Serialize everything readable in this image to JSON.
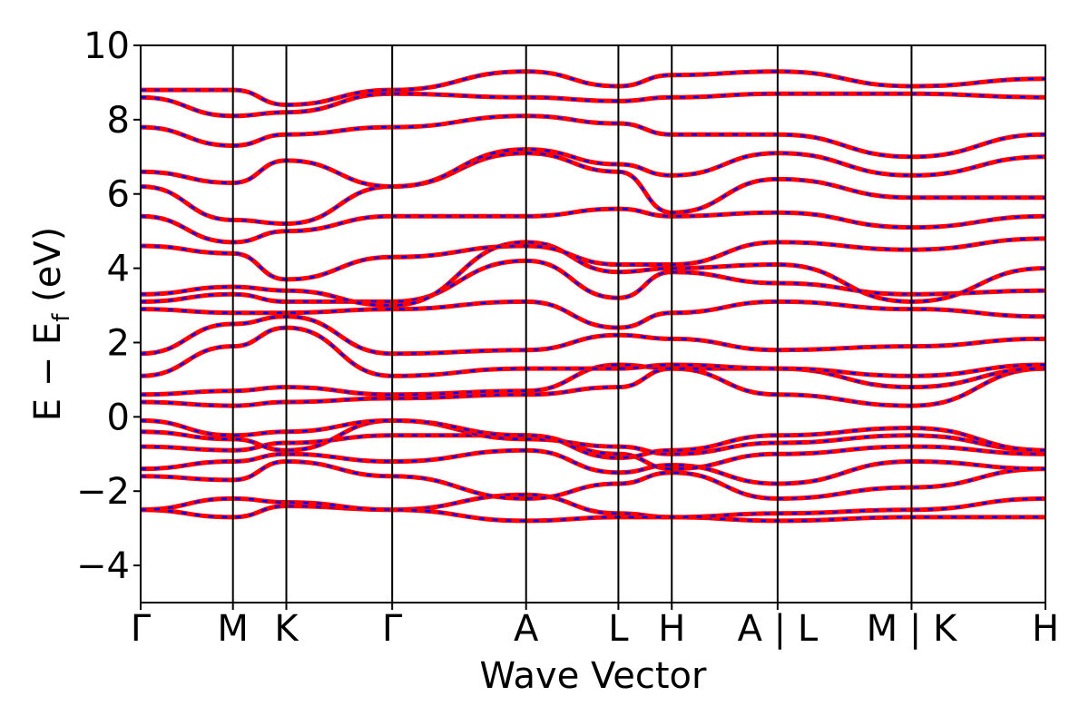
{
  "chart_data": {
    "type": "line",
    "title": "",
    "xlabel": "Wave Vector",
    "ylabel": "E − E",
    "ylabel_sub": "f",
    "ylabel_unit": " (eV)",
    "ylim": [
      -5,
      10
    ],
    "yticks": [
      -4,
      -2,
      0,
      2,
      4,
      6,
      8,
      10
    ],
    "ytick_labels": [
      "−4",
      "−2",
      "0",
      "2",
      "4",
      "6",
      "8",
      "10"
    ],
    "xlim": [
      0,
      1
    ],
    "kpoints": [
      {
        "label": "Γ",
        "x": 0.0
      },
      {
        "label": "M",
        "x": 0.102
      },
      {
        "label": "K",
        "x": 0.161
      },
      {
        "label": "Γ",
        "x": 0.278
      },
      {
        "label": "A",
        "x": 0.426
      },
      {
        "label": "L",
        "x": 0.528
      },
      {
        "label": "H",
        "x": 0.587
      },
      {
        "label": "A | L",
        "x": 0.704
      },
      {
        "label": "M | K",
        "x": 0.852
      },
      {
        "label": "H",
        "x": 1.0
      }
    ],
    "grid": false,
    "series_styles": [
      {
        "color": "#ff0000",
        "style": "solid",
        "width": 5
      },
      {
        "color": "#0000ff",
        "style": "dashed",
        "width": 2.5
      }
    ],
    "bands": [
      {
        "x": [
          0,
          0.102,
          0.161,
          0.278,
          0.426,
          0.528,
          0.587,
          0.704,
          0.852,
          1.0
        ],
        "y": [
          -2.5,
          -2.7,
          -2.4,
          -2.5,
          -2.1,
          -2.6,
          -2.7,
          -2.8,
          -2.7,
          -2.7
        ]
      },
      {
        "x": [
          0,
          0.102,
          0.161,
          0.278,
          0.426,
          0.528,
          0.587,
          0.704,
          0.852,
          1.0
        ],
        "y": [
          -2.5,
          -2.2,
          -2.3,
          -2.5,
          -2.8,
          -2.7,
          -2.7,
          -2.6,
          -2.5,
          -2.2
        ]
      },
      {
        "x": [
          0,
          0.102,
          0.161,
          0.278,
          0.426,
          0.528,
          0.587,
          0.704,
          0.852,
          1.0
        ],
        "y": [
          -1.6,
          -1.7,
          -1.2,
          -1.6,
          -2.2,
          -1.8,
          -1.5,
          -2.2,
          -1.9,
          -1.4
        ]
      },
      {
        "x": [
          0,
          0.102,
          0.161,
          0.278,
          0.426,
          0.528,
          0.587,
          0.704,
          0.852,
          1.0
        ],
        "y": [
          -1.4,
          -1.2,
          -1.0,
          -1.2,
          -0.9,
          -1.5,
          -1.3,
          -1.8,
          -1.2,
          -1.4
        ]
      },
      {
        "x": [
          0,
          0.102,
          0.161,
          0.278,
          0.426,
          0.528,
          0.587,
          0.704,
          0.852,
          1.0
        ],
        "y": [
          -0.8,
          -0.9,
          -0.7,
          -0.5,
          -0.5,
          -1.0,
          -1.4,
          -1.0,
          -0.8,
          -1.0
        ]
      },
      {
        "x": [
          0,
          0.102,
          0.161,
          0.278,
          0.426,
          0.528,
          0.587,
          0.704,
          0.852,
          1.0
        ],
        "y": [
          -0.4,
          -0.6,
          -0.9,
          -0.1,
          -0.6,
          -0.8,
          -1.0,
          -0.7,
          -0.5,
          -0.9
        ]
      },
      {
        "x": [
          0,
          0.102,
          0.161,
          0.278,
          0.426,
          0.528,
          0.587,
          0.704,
          0.852,
          1.0
        ],
        "y": [
          -0.1,
          -0.5,
          -0.4,
          -0.1,
          -0.5,
          -1.1,
          -0.9,
          -0.5,
          -0.3,
          -0.9
        ]
      },
      {
        "x": [
          0,
          0.102,
          0.161,
          0.278,
          0.426,
          0.528,
          0.587,
          0.704,
          0.852,
          1.0
        ],
        "y": [
          0.4,
          0.3,
          0.4,
          0.5,
          0.6,
          0.8,
          1.3,
          0.6,
          0.3,
          1.3
        ]
      },
      {
        "x": [
          0,
          0.102,
          0.161,
          0.278,
          0.426,
          0.528,
          0.587,
          0.704,
          0.852,
          1.0
        ],
        "y": [
          0.6,
          0.7,
          0.8,
          0.6,
          0.7,
          1.4,
          1.3,
          1.3,
          0.8,
          1.3
        ]
      },
      {
        "x": [
          0,
          0.102,
          0.161,
          0.278,
          0.426,
          0.528,
          0.587,
          0.704,
          0.852,
          1.0
        ],
        "y": [
          1.1,
          1.9,
          2.4,
          1.1,
          1.3,
          1.3,
          1.4,
          1.3,
          1.1,
          1.4
        ]
      },
      {
        "x": [
          0,
          0.102,
          0.161,
          0.278,
          0.426,
          0.528,
          0.587,
          0.704,
          0.852,
          1.0
        ],
        "y": [
          1.7,
          2.5,
          2.7,
          1.7,
          1.8,
          2.2,
          2.1,
          1.8,
          1.9,
          2.1
        ]
      },
      {
        "x": [
          0,
          0.102,
          0.161,
          0.278,
          0.426,
          0.528,
          0.587,
          0.704,
          0.852,
          1.0
        ],
        "y": [
          2.9,
          2.8,
          2.8,
          2.9,
          3.1,
          2.4,
          2.8,
          3.1,
          2.9,
          2.7
        ]
      },
      {
        "x": [
          0,
          0.102,
          0.161,
          0.278,
          0.426,
          0.528,
          0.587,
          0.704,
          0.852,
          1.0
        ],
        "y": [
          3.1,
          3.3,
          3.1,
          3.1,
          4.2,
          3.2,
          3.9,
          3.6,
          3.3,
          3.4
        ]
      },
      {
        "x": [
          0,
          0.102,
          0.161,
          0.278,
          0.426,
          0.528,
          0.587,
          0.704,
          0.852,
          1.0
        ],
        "y": [
          3.3,
          3.5,
          3.4,
          3.0,
          4.7,
          3.9,
          4.0,
          4.1,
          3.1,
          4.0
        ]
      },
      {
        "x": [
          0,
          0.102,
          0.161,
          0.278,
          0.426,
          0.528,
          0.587,
          0.704,
          0.852,
          1.0
        ],
        "y": [
          4.6,
          4.4,
          3.7,
          4.3,
          4.6,
          4.1,
          4.1,
          4.7,
          4.5,
          4.8
        ]
      },
      {
        "x": [
          0,
          0.102,
          0.161,
          0.278,
          0.426,
          0.528,
          0.587,
          0.704,
          0.852,
          1.0
        ],
        "y": [
          5.4,
          4.7,
          5.0,
          5.4,
          5.4,
          5.6,
          5.4,
          5.5,
          5.1,
          5.4
        ]
      },
      {
        "x": [
          0,
          0.102,
          0.161,
          0.278,
          0.426,
          0.528,
          0.587,
          0.704,
          0.852,
          1.0
        ],
        "y": [
          6.2,
          5.3,
          5.2,
          6.2,
          7.1,
          6.6,
          5.5,
          6.4,
          5.9,
          5.9
        ]
      },
      {
        "x": [
          0,
          0.102,
          0.161,
          0.278,
          0.426,
          0.528,
          0.587,
          0.704,
          0.852,
          1.0
        ],
        "y": [
          6.6,
          6.3,
          6.9,
          6.2,
          7.2,
          6.8,
          6.5,
          7.1,
          6.5,
          7.0
        ]
      },
      {
        "x": [
          0,
          0.102,
          0.161,
          0.278,
          0.426,
          0.528,
          0.587,
          0.704,
          0.852,
          1.0
        ],
        "y": [
          7.8,
          7.3,
          7.6,
          7.8,
          8.1,
          7.9,
          7.6,
          7.6,
          7.0,
          7.6
        ]
      },
      {
        "x": [
          0,
          0.102,
          0.161,
          0.278,
          0.426,
          0.528,
          0.587,
          0.704,
          0.852,
          1.0
        ],
        "y": [
          8.6,
          8.1,
          8.2,
          8.7,
          8.6,
          8.5,
          8.6,
          8.7,
          8.7,
          8.6
        ]
      },
      {
        "x": [
          0,
          0.102,
          0.161,
          0.278,
          0.426,
          0.528,
          0.587,
          0.704,
          0.852,
          1.0
        ],
        "y": [
          8.8,
          8.8,
          8.4,
          8.8,
          9.3,
          8.9,
          9.2,
          9.3,
          8.9,
          9.1
        ]
      }
    ]
  }
}
